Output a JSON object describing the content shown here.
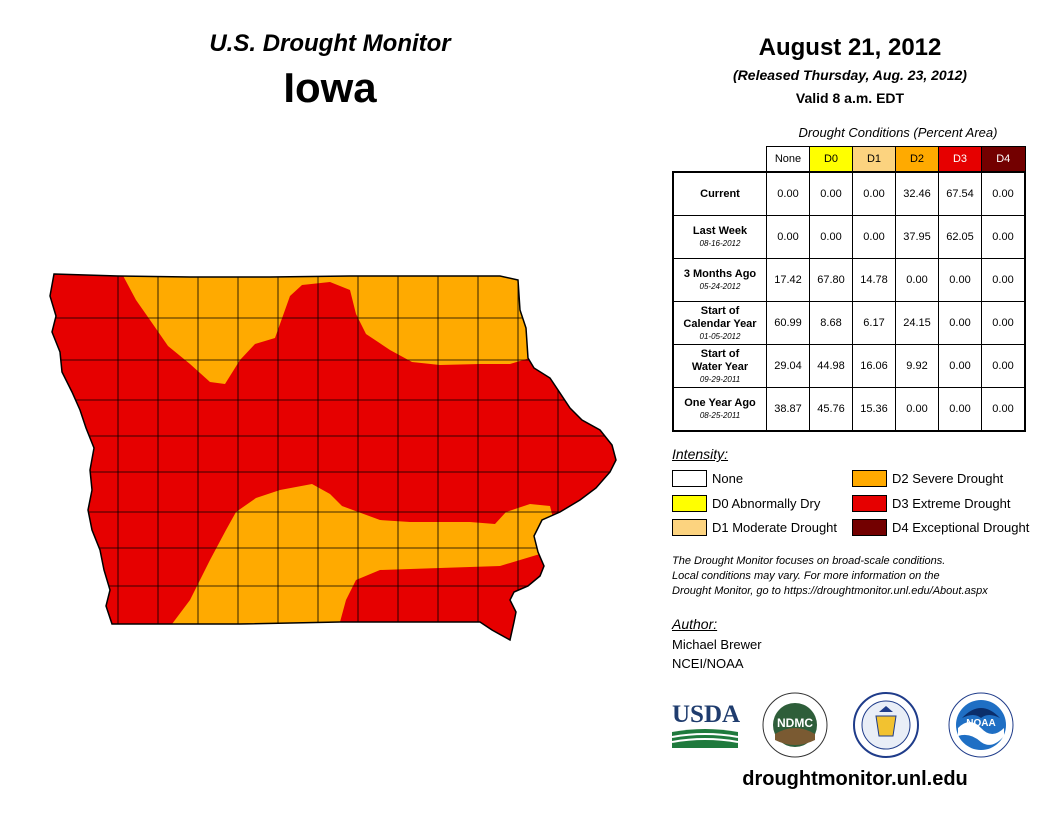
{
  "header": {
    "title": "U.S. Drought Monitor",
    "state": "Iowa",
    "date": "August 21, 2012",
    "released": "(Released Thursday, Aug. 23, 2012)",
    "valid": "Valid 8 a.m. EDT"
  },
  "table": {
    "caption": "Drought Conditions (Percent Area)",
    "columns": [
      "None",
      "D0",
      "D1",
      "D2",
      "D3",
      "D4"
    ],
    "column_colors": [
      "#ffffff",
      "#ffff00",
      "#fcd37f",
      "#ffaa00",
      "#e60000",
      "#730000"
    ],
    "column_text_colors": [
      "#000000",
      "#000000",
      "#000000",
      "#000000",
      "#ffffff",
      "#ffffff"
    ],
    "rows": [
      {
        "label": "Current",
        "date": "",
        "values": [
          "0.00",
          "0.00",
          "0.00",
          "32.46",
          "67.54",
          "0.00"
        ]
      },
      {
        "label": "Last Week",
        "date": "08-16-2012",
        "values": [
          "0.00",
          "0.00",
          "0.00",
          "37.95",
          "62.05",
          "0.00"
        ]
      },
      {
        "label": "3 Months Ago",
        "date": "05-24-2012",
        "values": [
          "17.42",
          "67.80",
          "14.78",
          "0.00",
          "0.00",
          "0.00"
        ]
      },
      {
        "label": "Start of Calendar Year",
        "date": "01-05-2012",
        "values": [
          "60.99",
          "8.68",
          "6.17",
          "24.15",
          "0.00",
          "0.00"
        ]
      },
      {
        "label": "Start of Water Year",
        "date": "09-29-2011",
        "values": [
          "29.04",
          "44.98",
          "16.06",
          "9.92",
          "0.00",
          "0.00"
        ]
      },
      {
        "label": "One Year Ago",
        "date": "08-25-2011",
        "values": [
          "38.87",
          "45.76",
          "15.36",
          "0.00",
          "0.00",
          "0.00"
        ]
      }
    ]
  },
  "legend": {
    "title": "Intensity:",
    "items": [
      {
        "label": "None",
        "color": "#ffffff"
      },
      {
        "label": "D0 Abnormally Dry",
        "color": "#ffff00"
      },
      {
        "label": "D1 Moderate Drought",
        "color": "#fcd37f"
      },
      {
        "label": "D2 Severe Drought",
        "color": "#ffaa00"
      },
      {
        "label": "D3 Extreme Drought",
        "color": "#e60000"
      },
      {
        "label": "D4 Exceptional Drought",
        "color": "#730000"
      }
    ]
  },
  "note": {
    "line1": "The Drought Monitor focuses on broad-scale conditions.",
    "line2": "Local conditions may vary. For more information on the",
    "line3": "Drought Monitor, go to https://droughtmonitor.unl.edu/About.aspx"
  },
  "author": {
    "title": "Author:",
    "name": "Michael Brewer",
    "org": "NCEI/NOAA"
  },
  "logos": {
    "usda": "USDA",
    "ndmc": "NDMC",
    "noaa": "NOAA"
  },
  "footer": {
    "url": "droughtmonitor.unl.edu"
  },
  "map": {
    "colors": {
      "d2": "#ffaa00",
      "d3": "#e60000",
      "border": "#000000"
    }
  }
}
